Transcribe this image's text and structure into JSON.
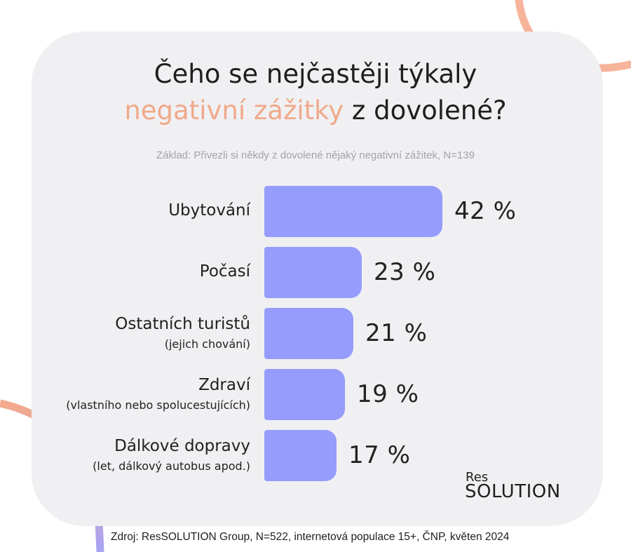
{
  "title": {
    "line1": "Čeho se nejčastěji týkaly",
    "line2_accent": "negativní zážitky",
    "line2_rest": " z dovolené?"
  },
  "subtitle": "Základ: Přivezli si někdy z dovolené nějaký negativní zážitek, N=139",
  "chart_data": {
    "type": "bar",
    "orientation": "horizontal",
    "title": "Čeho se nejčastěji týkaly negativní zážitky z dovolené?",
    "categories": [
      "Ubytování",
      "Počasí",
      "Ostatních turistů",
      "Zdraví",
      "Dálkové dopravy"
    ],
    "category_notes": [
      "",
      "",
      "(jejich chování)",
      "(vlastního nebo spolucestujících)",
      "(let, dálkový autobus apod.)"
    ],
    "values": [
      42,
      23,
      21,
      19,
      17
    ],
    "value_labels": [
      "42 %",
      "23 %",
      "21 %",
      "19 %",
      "17 %"
    ],
    "bar_color": "#959cfb",
    "xlim": [
      0,
      42
    ]
  },
  "logo": {
    "small": "Res",
    "big": "SOLUTION"
  },
  "source": "Zdroj: ResSOLUTION Group, N=522, internetová populace 15+, ČNP, květen 2024",
  "colors": {
    "accent": "#f0a98a",
    "bar": "#959cfb",
    "card": "#f0f0f3"
  }
}
